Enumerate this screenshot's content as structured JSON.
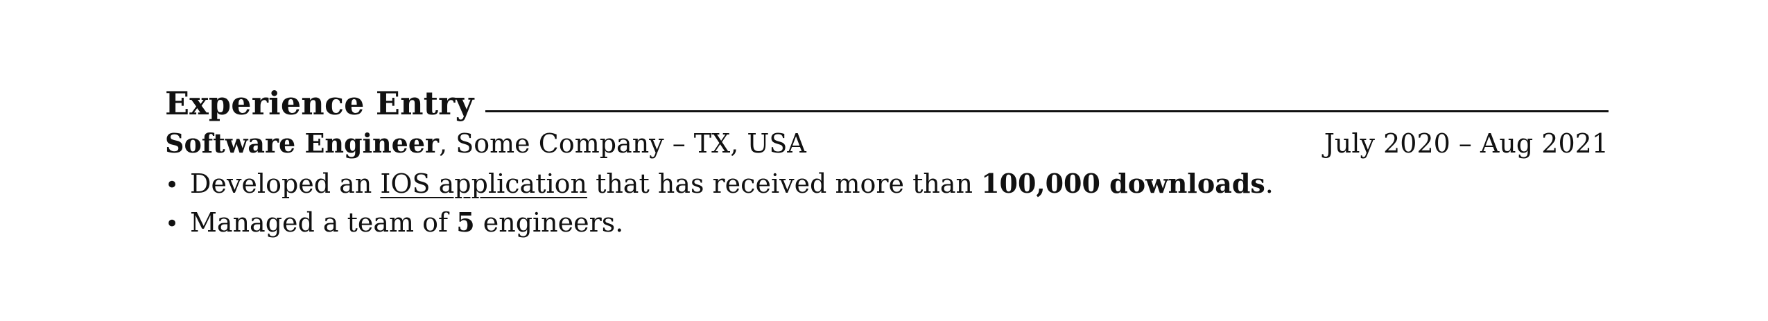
{
  "section": {
    "title": "Experience Entry"
  },
  "entry": {
    "role": "Software Engineer",
    "separator": ", ",
    "company_location": "Some Company – TX, USA",
    "dates": "July 2020 – Aug 2021"
  },
  "bullets": {
    "mark": "•",
    "item1": {
      "part1": "Developed an ",
      "link": "IOS application",
      "part2": " that has received more than ",
      "bold": "100,000 downloads",
      "part3": "."
    },
    "item2": {
      "part1": "Managed a team of ",
      "bold": "5",
      "part2": " engineers."
    }
  }
}
